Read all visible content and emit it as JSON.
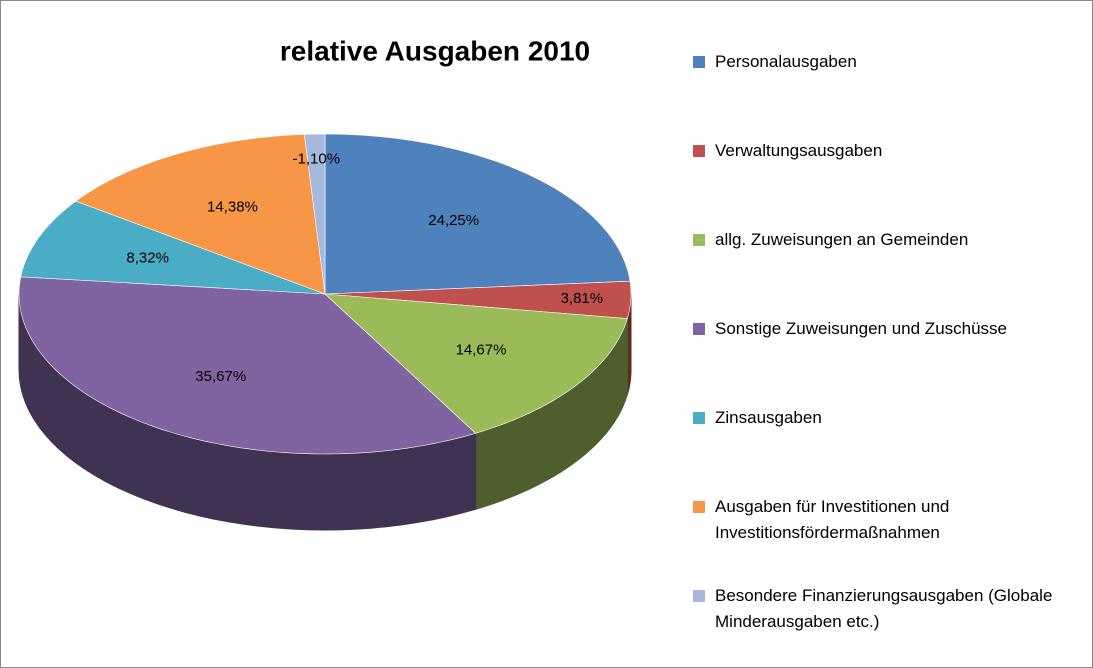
{
  "chart_data": {
    "type": "pie3d",
    "title": "relative Ausgaben 2010",
    "categories": [
      "Personalausgaben",
      "Verwaltungsausgaben",
      "allg. Zuweisungen an Gemeinden",
      "Sonstige Zuweisungen und Zuschüsse",
      "Zinsausgaben",
      "Ausgaben für Investitionen und Investitionsfördermaßnahmen",
      "Besondere Finanzierungsausgaben (Globale Minderausgaben etc.)"
    ],
    "values": [
      24.25,
      3.81,
      14.67,
      35.67,
      8.32,
      14.38,
      -1.1
    ],
    "value_labels": [
      "24,25%",
      "3,81%",
      "14,67%",
      "35,67%",
      "8,32%",
      "14,38%",
      "-1,10%"
    ],
    "colors": [
      "#4f81bd",
      "#c0504d",
      "#9bbb59",
      "#8064a2",
      "#4bacc6",
      "#f79646",
      "#a5b9dc"
    ],
    "legend": "right"
  }
}
